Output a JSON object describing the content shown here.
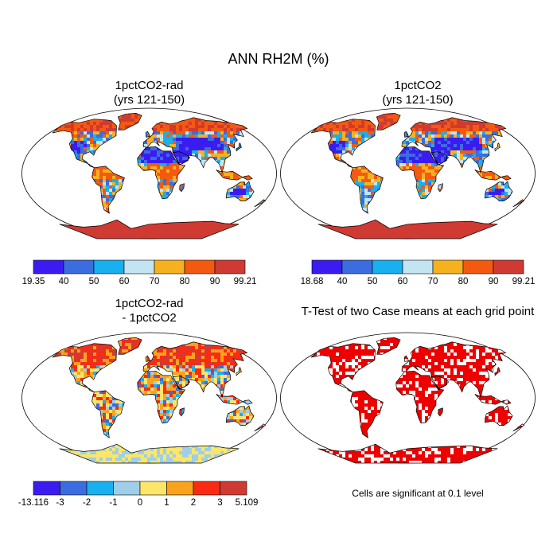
{
  "figure": {
    "title": "ANN RH2M (%)"
  },
  "panels": [
    {
      "title": "1pctCO2-rad\n(yrs 121-150)",
      "kind": "abs",
      "seed": 3
    },
    {
      "title": "1pctCO2\n(yrs 121-150)",
      "kind": "abs",
      "seed": 5
    },
    {
      "title": "1pctCO2-rad\n- 1pctCO2",
      "kind": "diff",
      "seed": 11
    },
    {
      "title": "T-Test of two Case means at each grid point",
      "kind": "ttest",
      "seed": 17
    }
  ],
  "colorbars": [
    {
      "colors": [
        "#3b1cf0",
        "#3b6ce0",
        "#18b0ee",
        "#c3e4f2",
        "#f6b21e",
        "#f35a10",
        "#cf3a33"
      ],
      "labels": [
        "19.35",
        "40",
        "50",
        "60",
        "70",
        "80",
        "90",
        "99.21"
      ]
    },
    {
      "colors": [
        "#3b1cf0",
        "#3b6ce0",
        "#18b0ee",
        "#c3e4f2",
        "#f6b21e",
        "#f35a10",
        "#cf3a33"
      ],
      "labels": [
        "18.68",
        "40",
        "50",
        "60",
        "70",
        "80",
        "90",
        "99.21"
      ]
    },
    {
      "colors": [
        "#3b1cf0",
        "#3b6ce0",
        "#18b0ee",
        "#9fcfe8",
        "#fbe66a",
        "#f9a31c",
        "#fb2a12",
        "#cf3a33"
      ],
      "labels": [
        "-13.116",
        "-3",
        "-2",
        "-1",
        "0",
        "1",
        "2",
        "3",
        "5.109"
      ]
    }
  ],
  "ttest_note": "Cells are significant at 0.1 level",
  "ttest_color": "#ee0000"
}
